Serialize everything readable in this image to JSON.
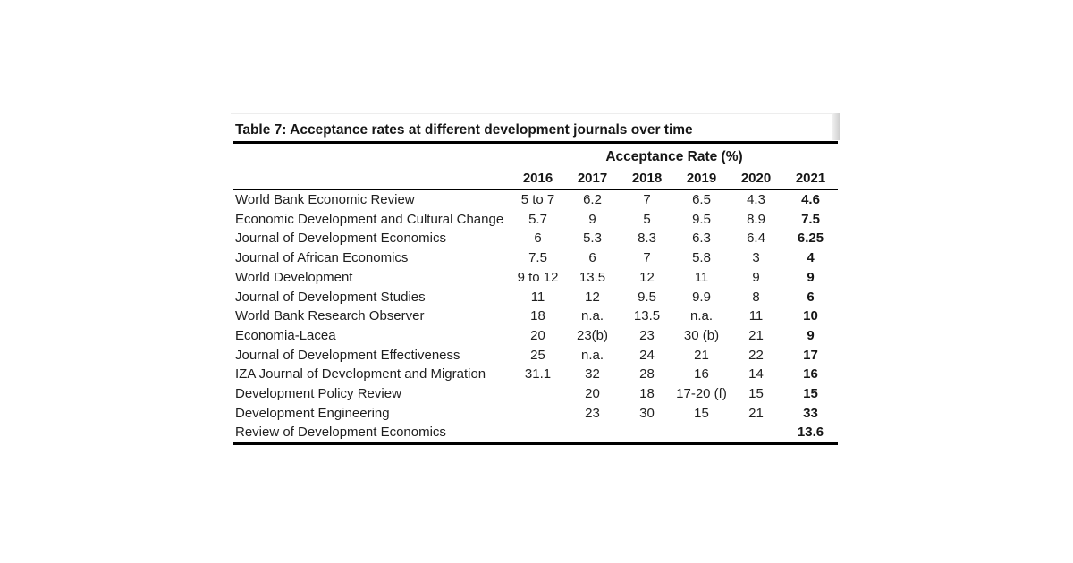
{
  "colors": {
    "text": "#1f1f1f",
    "bold_text": "#161616",
    "rule_line": "#000000",
    "scan_edge": "#d6d6d6",
    "background": "#ffffff"
  },
  "table": {
    "title": "Table 7: Acceptance rates at different development journals over time",
    "group_header": "Acceptance Rate (%)",
    "columns": [
      "2016",
      "2017",
      "2018",
      "2019",
      "2020",
      "2021"
    ],
    "rows": [
      {
        "journal": "World Bank Economic Review",
        "values": [
          "5 to 7",
          "6.2",
          "7",
          "6.5",
          "4.3",
          "4.6"
        ]
      },
      {
        "journal": "Economic Development and Cultural Change",
        "values": [
          "5.7",
          "9",
          "5",
          "9.5",
          "8.9",
          "7.5"
        ]
      },
      {
        "journal": "Journal of Development Economics",
        "values": [
          "6",
          "5.3",
          "8.3",
          "6.3",
          "6.4",
          "6.25"
        ]
      },
      {
        "journal": "Journal of African Economics",
        "values": [
          "7.5",
          "6",
          "7",
          "5.8",
          "3",
          "4"
        ]
      },
      {
        "journal": "World Development",
        "values": [
          "9 to 12",
          "13.5",
          "12",
          "11",
          "9",
          "9"
        ]
      },
      {
        "journal": "Journal of Development Studies",
        "values": [
          "11",
          "12",
          "9.5",
          "9.9",
          "8",
          "6"
        ]
      },
      {
        "journal": "World Bank Research Observer",
        "values": [
          "18",
          "n.a.",
          "13.5",
          "n.a.",
          "11",
          "10"
        ]
      },
      {
        "journal": "Economia-Lacea",
        "values": [
          "20",
          "23(b)",
          "23",
          "30 (b)",
          "21",
          "9"
        ]
      },
      {
        "journal": "Journal of Development Effectiveness",
        "values": [
          "25",
          "n.a.",
          "24",
          "21",
          "22",
          "17"
        ]
      },
      {
        "journal": "IZA Journal of Development and Migration",
        "values": [
          "31.1",
          "32",
          "28",
          "16",
          "14",
          "16"
        ]
      },
      {
        "journal": "Development Policy Review",
        "values": [
          "",
          "20",
          "18",
          "17-20 (f)",
          "15",
          "15"
        ]
      },
      {
        "journal": "Development Engineering",
        "values": [
          "",
          "23",
          "30",
          "15",
          "21",
          "33"
        ]
      },
      {
        "journal": "Review of Development Economics",
        "values": [
          "",
          "",
          "",
          "",
          "",
          "13.6"
        ]
      }
    ]
  },
  "chart_data": {
    "type": "table",
    "title": "Table 7: Acceptance rates at different development journals over time",
    "group_header": "Acceptance Rate (%)",
    "columns": [
      "2016",
      "2017",
      "2018",
      "2019",
      "2020",
      "2021"
    ],
    "rows": [
      [
        "World Bank Economic Review",
        "5 to 7",
        "6.2",
        "7",
        "6.5",
        "4.3",
        "4.6"
      ],
      [
        "Economic Development and Cultural Change",
        "5.7",
        "9",
        "5",
        "9.5",
        "8.9",
        "7.5"
      ],
      [
        "Journal of Development Economics",
        "6",
        "5.3",
        "8.3",
        "6.3",
        "6.4",
        "6.25"
      ],
      [
        "Journal of African Economics",
        "7.5",
        "6",
        "7",
        "5.8",
        "3",
        "4"
      ],
      [
        "World Development",
        "9 to 12",
        "13.5",
        "12",
        "11",
        "9",
        "9"
      ],
      [
        "Journal of Development Studies",
        "11",
        "12",
        "9.5",
        "9.9",
        "8",
        "6"
      ],
      [
        "World Bank Research Observer",
        "18",
        "n.a.",
        "13.5",
        "n.a.",
        "11",
        "10"
      ],
      [
        "Economia-Lacea",
        "20",
        "23(b)",
        "23",
        "30 (b)",
        "21",
        "9"
      ],
      [
        "Journal of Development Effectiveness",
        "25",
        "n.a.",
        "24",
        "21",
        "22",
        "17"
      ],
      [
        "IZA Journal of Development and Migration",
        "31.1",
        "32",
        "28",
        "16",
        "14",
        "16"
      ],
      [
        "Development Policy Review",
        "",
        "20",
        "18",
        "17-20 (f)",
        "15",
        "15"
      ],
      [
        "Development Engineering",
        "",
        "23",
        "30",
        "15",
        "21",
        "33"
      ],
      [
        "Review of Development Economics",
        "",
        "",
        "",
        "",
        "",
        "13.6"
      ]
    ]
  }
}
